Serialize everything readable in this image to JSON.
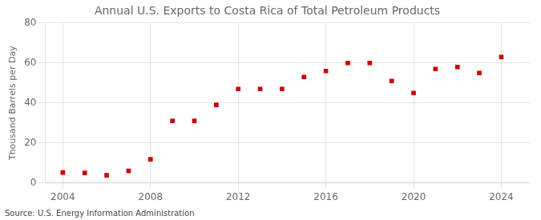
{
  "chart_data": {
    "type": "scatter",
    "title": "Annual U.S. Exports to Costa Rica of Total Petroleum Products",
    "ylabel": "Thousand Barrels per Day",
    "annotation": "Source: U.S. Energy Information Administration",
    "x": [
      2004,
      2005,
      2006,
      2007,
      2008,
      2009,
      2010,
      2011,
      2012,
      2013,
      2014,
      2015,
      2016,
      2017,
      2018,
      2019,
      2020,
      2021,
      2022,
      2023,
      2024
    ],
    "values": [
      5.2,
      5.0,
      3.8,
      6.0,
      11.8,
      31.0,
      31.0,
      39.0,
      47.0,
      47.0,
      47.0,
      53.0,
      56.0,
      60.0,
      60.0,
      51.0,
      45.0,
      57.0,
      58.0,
      55.0,
      63.0
    ],
    "color": "#cc0000",
    "marker": "square",
    "xlim": [
      2003.2,
      2025.3
    ],
    "xticks": [
      2004,
      2008,
      2012,
      2016,
      2020,
      2024
    ],
    "ylim": [
      0,
      80
    ],
    "yticks": [
      0,
      20,
      40,
      60,
      80
    ],
    "grid": true
  }
}
